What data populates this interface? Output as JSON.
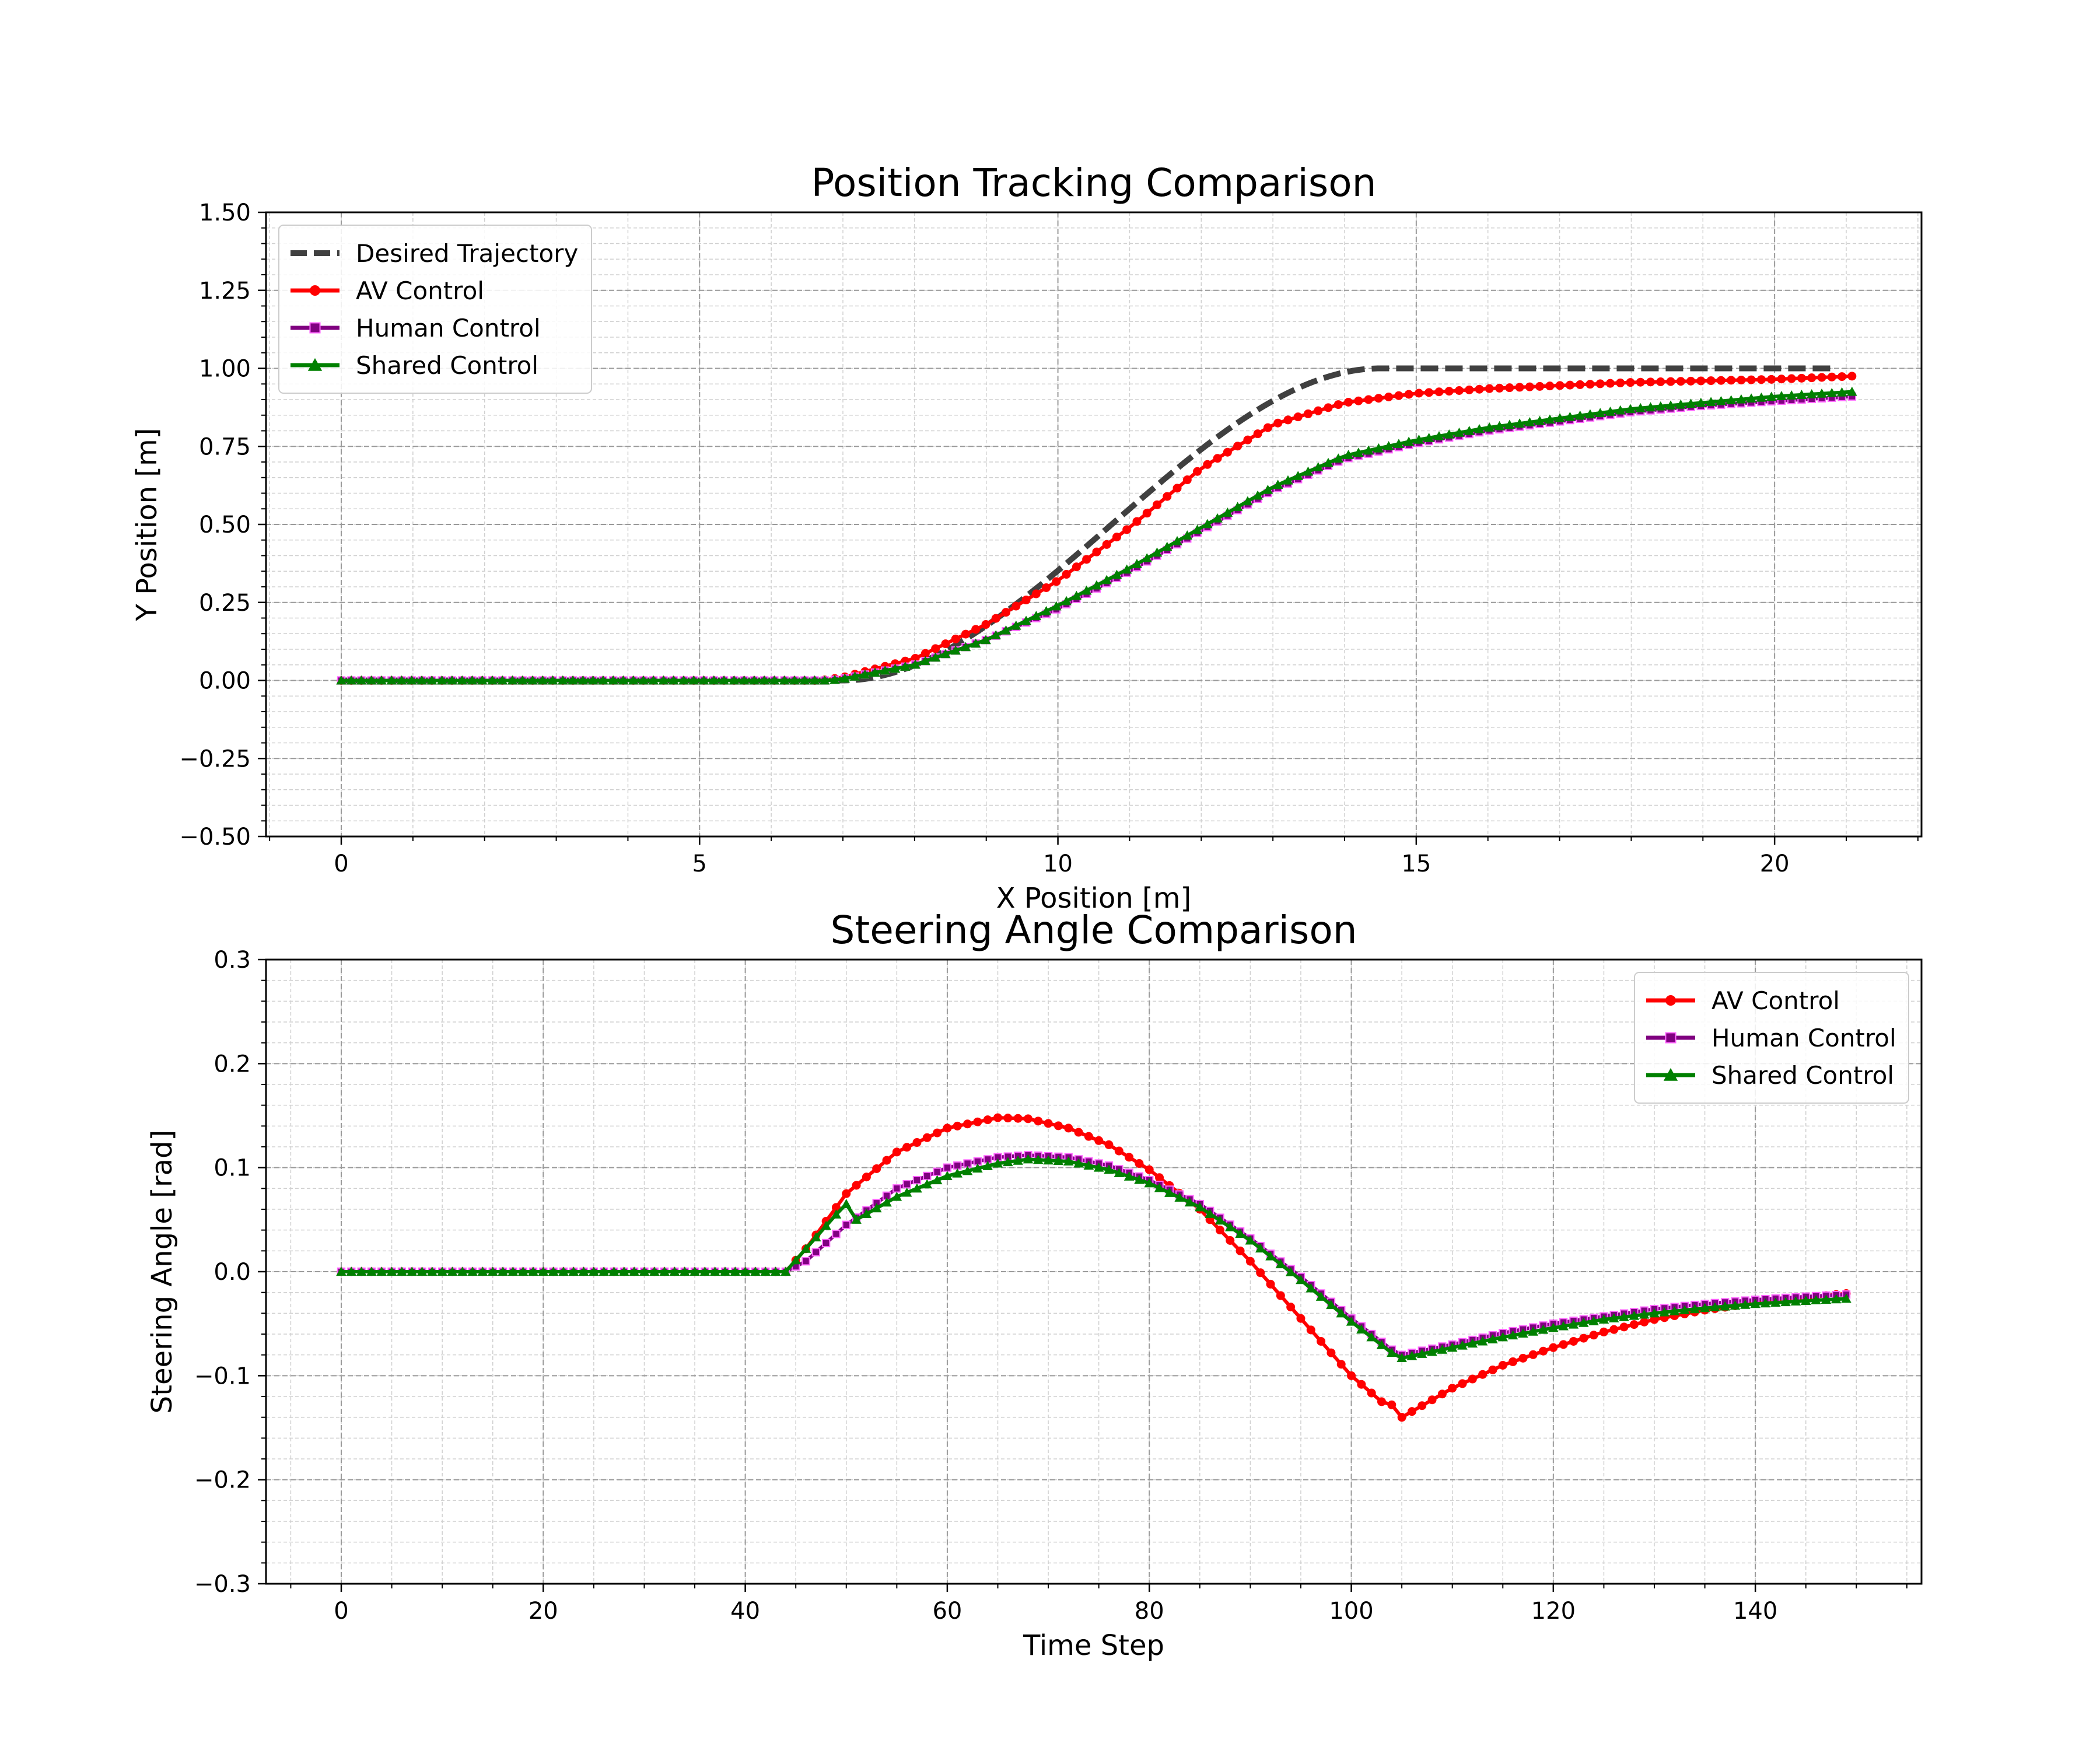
{
  "chart_data": [
    {
      "type": "line",
      "title": "Position Tracking Comparison",
      "xlabel": "X Position [m]",
      "ylabel": "Y Position [m]",
      "xlim": [
        -1.05,
        22.05
      ],
      "ylim": [
        -0.5,
        1.5
      ],
      "xticks": [
        0,
        5,
        10,
        15,
        20
      ],
      "xtick_labels": [
        "0",
        "5",
        "10",
        "15",
        "20"
      ],
      "xminor_step": 1,
      "yticks": [
        -0.5,
        -0.25,
        0,
        0.25,
        0.5,
        0.75,
        1.0,
        1.25,
        1.5
      ],
      "ytick_labels": [
        "−0.50",
        "−0.25",
        "0.00",
        "0.25",
        "0.50",
        "0.75",
        "1.00",
        "1.25",
        "1.50"
      ],
      "yminor_step": 0.05,
      "grid": true,
      "legend_position": "top-left",
      "series": [
        {
          "name": "Desired Trajectory",
          "color": "#404040",
          "style": "dashed",
          "marker": "none",
          "x_start": 0.0,
          "x_end": 20.86,
          "y_profile": "smoothstep",
          "rise_start": 7.0,
          "rise_end": 14.5,
          "y_start": 0.0,
          "y_end": 1.0
        },
        {
          "name": "AV Control",
          "color": "#ff0000",
          "style": "solid",
          "marker": "circle",
          "marker_count": 151,
          "x": [
            0,
            6.7,
            7,
            8,
            9,
            10,
            11,
            12,
            13,
            14,
            15,
            16,
            17,
            18,
            19,
            20,
            21.08
          ],
          "y": [
            0,
            0,
            0.01,
            0.07,
            0.18,
            0.32,
            0.49,
            0.68,
            0.82,
            0.89,
            0.92,
            0.935,
            0.945,
            0.955,
            0.96,
            0.965,
            0.975
          ]
        },
        {
          "name": "Human Control",
          "color": "#800080",
          "style": "solid",
          "marker": "square",
          "marker_count": 151,
          "x": [
            0,
            6.8,
            7,
            8,
            9,
            10,
            11,
            12,
            13,
            14,
            15,
            16,
            17,
            18,
            19,
            20,
            21.08
          ],
          "y": [
            0,
            0,
            0.005,
            0.05,
            0.13,
            0.23,
            0.35,
            0.48,
            0.61,
            0.71,
            0.76,
            0.8,
            0.83,
            0.86,
            0.88,
            0.895,
            0.91
          ]
        },
        {
          "name": "Shared Control",
          "color": "#008000",
          "style": "solid",
          "marker": "triangle",
          "marker_count": 151,
          "x": [
            0,
            6.8,
            7,
            8,
            9,
            10,
            11,
            12,
            13,
            14,
            15,
            16,
            17,
            18,
            19,
            20,
            21.08
          ],
          "y": [
            0,
            0,
            0.005,
            0.05,
            0.13,
            0.24,
            0.36,
            0.49,
            0.62,
            0.72,
            0.77,
            0.81,
            0.84,
            0.87,
            0.89,
            0.91,
            0.925
          ]
        }
      ]
    },
    {
      "type": "line",
      "title": "Steering Angle Comparison",
      "xlabel": "Time Step",
      "ylabel": "Steering Angle [rad]",
      "xlim": [
        -7.45,
        156.45
      ],
      "ylim": [
        -0.3,
        0.3
      ],
      "xticks": [
        0,
        20,
        40,
        60,
        80,
        100,
        120,
        140
      ],
      "xtick_labels": [
        "0",
        "20",
        "40",
        "60",
        "80",
        "100",
        "120",
        "140"
      ],
      "xminor_step": 5,
      "yticks": [
        -0.3,
        -0.2,
        -0.1,
        0.0,
        0.1,
        0.2,
        0.3
      ],
      "ytick_labels": [
        "−0.3",
        "−0.2",
        "−0.1",
        "0.0",
        "0.1",
        "0.2",
        "0.3"
      ],
      "yminor_step": 0.02,
      "grid": true,
      "legend_position": "top-right",
      "series": [
        {
          "name": "AV Control",
          "color": "#ff0000",
          "style": "solid",
          "marker": "circle",
          "marker_step": 1,
          "x": [
            0,
            44,
            46,
            50,
            55,
            60,
            65,
            68,
            72,
            76,
            80,
            85,
            90,
            95,
            100,
            103,
            104,
            105,
            110,
            115,
            120,
            125,
            130,
            135,
            140,
            145,
            149
          ],
          "y": [
            0,
            0,
            0.022,
            0.075,
            0.115,
            0.138,
            0.148,
            0.147,
            0.138,
            0.122,
            0.098,
            0.06,
            0.01,
            -0.045,
            -0.1,
            -0.125,
            -0.128,
            -0.14,
            -0.112,
            -0.09,
            -0.073,
            -0.058,
            -0.046,
            -0.037,
            -0.03,
            -0.025,
            -0.021
          ]
        },
        {
          "name": "Human Control",
          "color": "#800080",
          "style": "solid",
          "marker": "square",
          "marker_step": 1,
          "x": [
            0,
            44,
            46,
            50,
            55,
            60,
            65,
            68,
            72,
            76,
            80,
            85,
            90,
            95,
            100,
            104,
            105,
            110,
            115,
            120,
            125,
            130,
            135,
            140,
            145,
            149
          ],
          "y": [
            0,
            0,
            0.01,
            0.045,
            0.08,
            0.1,
            0.11,
            0.112,
            0.11,
            0.102,
            0.088,
            0.065,
            0.032,
            -0.005,
            -0.045,
            -0.075,
            -0.08,
            -0.07,
            -0.059,
            -0.05,
            -0.043,
            -0.036,
            -0.031,
            -0.027,
            -0.024,
            -0.022
          ]
        },
        {
          "name": "Shared Control",
          "color": "#008000",
          "style": "solid",
          "marker": "triangle",
          "marker_step": 1,
          "x": [
            0,
            44,
            46,
            49,
            50,
            51,
            55,
            60,
            65,
            68,
            72,
            76,
            80,
            85,
            90,
            95,
            100,
            104,
            105,
            110,
            115,
            120,
            125,
            130,
            135,
            140,
            145,
            149
          ],
          "y": [
            0,
            0,
            0.022,
            0.055,
            0.065,
            0.05,
            0.072,
            0.092,
            0.104,
            0.108,
            0.106,
            0.098,
            0.085,
            0.062,
            0.03,
            -0.008,
            -0.048,
            -0.078,
            -0.083,
            -0.073,
            -0.063,
            -0.054,
            -0.046,
            -0.04,
            -0.035,
            -0.031,
            -0.028,
            -0.026
          ]
        }
      ]
    }
  ]
}
